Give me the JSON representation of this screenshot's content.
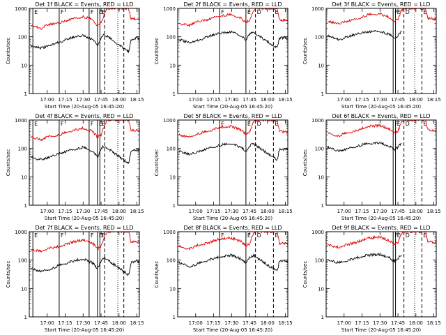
{
  "figure": {
    "ylabel": "Counts/sec",
    "xlabel_prefix": "Start Time (20-Aug-05",
    "colors": {
      "events": "#000000",
      "lld": "#e00000",
      "frame": "#000000"
    }
  },
  "chart_data": [
    {
      "type": "line",
      "title": "Det 1f BLACK = Events, RED = LLD",
      "xlabel": "Start Time (20-Aug-05 16:45:20)",
      "ylabel": "Counts/sec",
      "yscale": "log",
      "ylim": [
        1,
        1000
      ],
      "yticks": [
        "1",
        "10",
        "100",
        "1000"
      ],
      "xlim_minutes_after_1645": [
        0,
        92
      ],
      "xticks": [
        "17:00",
        "17:15",
        "17:30",
        "17:45",
        "18:00",
        "18:15"
      ],
      "annotations": [
        "E",
        "F",
        "F",
        "D",
        "E"
      ],
      "markers_solid": [
        "16:48",
        "17:10",
        "17:35",
        "17:42",
        "17:44"
      ],
      "markers_dashed": [
        "17:48",
        "18:04"
      ],
      "markers_dotted": [
        "17:59"
      ],
      "series": [
        {
          "color": "black",
          "x": [
            "16:46",
            "16:55",
            "17:00",
            "17:10",
            "17:20",
            "17:30",
            "17:38",
            "17:42",
            "17:45",
            "17:46",
            "17:48",
            "18:08",
            "18:10",
            "18:15",
            "18:18"
          ],
          "y": [
            50,
            40,
            45,
            65,
            90,
            110,
            80,
            50,
            95,
            110,
            120,
            30,
            80,
            90,
            85
          ]
        },
        {
          "color": "red",
          "x": [
            "16:46",
            "16:55",
            "17:00",
            "17:10",
            "17:20",
            "17:30",
            "17:38",
            "17:42",
            "17:45",
            "17:48",
            "17:50",
            "18:08",
            "18:10",
            "18:15",
            "18:18"
          ],
          "y": [
            250,
            200,
            260,
            300,
            420,
            520,
            400,
            250,
            300,
            700,
            1000,
            1000,
            450,
            420,
            400
          ]
        }
      ]
    },
    {
      "type": "line",
      "title": "Det 2f BLACK = Events, RED = LLD",
      "xlabel": "Start Time (20-Aug-05 16:45:20)",
      "ylabel": "Counts/sec",
      "yscale": "log",
      "ylim": [
        1,
        1000
      ],
      "yticks": [
        "1",
        "10",
        "100",
        "1000"
      ],
      "xlim_minutes_after_1645": [
        0,
        92
      ],
      "xticks": [
        "17:00",
        "17:15",
        "17:30",
        "17:45",
        "18:00",
        "18:15"
      ],
      "annotations": [
        "F",
        "E",
        "D",
        "E"
      ],
      "markers_solid": [
        "17:20",
        "17:42"
      ],
      "markers_dashed": [
        "17:50",
        "18:05"
      ],
      "markers_dotted": [],
      "series": [
        {
          "color": "black",
          "x": [
            "16:46",
            "16:55",
            "17:00",
            "17:10",
            "17:20",
            "17:30",
            "17:38",
            "17:42",
            "17:45",
            "17:46",
            "17:48",
            "18:08",
            "18:10",
            "18:15",
            "18:18"
          ],
          "y": [
            80,
            60,
            70,
            100,
            130,
            150,
            110,
            80,
            120,
            130,
            150,
            40,
            90,
            95,
            90
          ]
        },
        {
          "color": "red",
          "x": [
            "16:46",
            "16:55",
            "17:00",
            "17:10",
            "17:20",
            "17:30",
            "17:38",
            "17:42",
            "17:45",
            "17:48",
            "17:50",
            "18:08",
            "18:10",
            "18:15",
            "18:18"
          ],
          "y": [
            300,
            250,
            320,
            400,
            560,
            600,
            450,
            320,
            380,
            800,
            1000,
            1000,
            400,
            380,
            350
          ]
        }
      ]
    },
    {
      "type": "line",
      "title": "Det 3f BLACK = Events, RED = LLD",
      "xlabel": "Start Time (20-Aug-05 16:45:20)",
      "ylabel": "Counts/sec",
      "yscale": "log",
      "ylim": [
        1,
        1000
      ],
      "yticks": [
        "1",
        "10",
        "100",
        "1000"
      ],
      "xlim_minutes_after_1645": [
        0,
        92
      ],
      "xticks": [
        "17:00",
        "17:15",
        "17:30",
        "17:45",
        "18:00",
        "18:15"
      ],
      "annotations": [
        "F",
        "E",
        "D",
        "E"
      ],
      "markers_solid": [
        "17:41",
        "17:43"
      ],
      "markers_dashed": [
        "17:50",
        "18:05"
      ],
      "markers_dotted": [
        "17:59"
      ],
      "series": [
        {
          "color": "black",
          "x": [
            "16:46",
            "16:55",
            "17:00",
            "17:10",
            "17:20",
            "17:30",
            "17:38",
            "17:42",
            "17:45",
            "17:46",
            "17:48"
          ],
          "y": [
            110,
            80,
            90,
            120,
            150,
            160,
            120,
            90,
            110,
            130,
            150
          ]
        },
        {
          "color": "red",
          "x": [
            "16:46",
            "16:55",
            "17:00",
            "17:10",
            "17:20",
            "17:30",
            "17:38",
            "17:42",
            "17:45",
            "17:48",
            "17:50",
            "18:08",
            "18:10",
            "18:15",
            "18:18"
          ],
          "y": [
            350,
            280,
            330,
            420,
            600,
            650,
            480,
            350,
            420,
            850,
            1000,
            1000,
            450,
            420,
            400
          ]
        }
      ]
    },
    {
      "type": "line",
      "title": "Det 4f BLACK = Events, RED = LLD",
      "xlabel": "Start Time (20-Aug-05 16:45:20)",
      "ylabel": "Counts/sec",
      "yscale": "log",
      "ylim": [
        1,
        1000
      ],
      "yticks": [
        "1",
        "10",
        "100",
        "1000"
      ],
      "xlim_minutes_after_1645": [
        0,
        92
      ],
      "xticks": [
        "17:00",
        "17:15",
        "17:30",
        "17:45",
        "18:00",
        "18:15"
      ],
      "annotations": [
        "E",
        "F",
        "F",
        "D",
        "E"
      ],
      "markers_solid": [
        "16:48",
        "17:10",
        "17:35",
        "17:42",
        "17:44"
      ],
      "markers_dashed": [
        "17:48",
        "18:04"
      ],
      "markers_dotted": [
        "17:59"
      ],
      "series": [
        {
          "color": "black",
          "x": [
            "16:46",
            "16:55",
            "17:00",
            "17:10",
            "17:20",
            "17:30",
            "17:38",
            "17:42",
            "17:45",
            "17:46",
            "17:48",
            "18:08",
            "18:10",
            "18:15",
            "18:18"
          ],
          "y": [
            50,
            40,
            45,
            65,
            90,
            110,
            80,
            50,
            95,
            110,
            120,
            30,
            80,
            90,
            85
          ]
        },
        {
          "color": "red",
          "x": [
            "16:46",
            "16:55",
            "17:00",
            "17:10",
            "17:20",
            "17:30",
            "17:38",
            "17:42",
            "17:45",
            "17:48",
            "17:50",
            "18:08",
            "18:10",
            "18:15",
            "18:18"
          ],
          "y": [
            250,
            200,
            260,
            300,
            420,
            520,
            400,
            250,
            300,
            700,
            1000,
            1000,
            450,
            420,
            400
          ]
        }
      ]
    },
    {
      "type": "line",
      "title": "Det 5f BLACK = Events, RED = LLD",
      "xlabel": "Start Time (20-Aug-05 16:45:20)",
      "ylabel": "Counts/sec",
      "yscale": "log",
      "ylim": [
        1,
        1000
      ],
      "yticks": [
        "1",
        "10",
        "100",
        "1000"
      ],
      "xlim_minutes_after_1645": [
        0,
        92
      ],
      "xticks": [
        "17:00",
        "17:15",
        "17:30",
        "17:45",
        "18:00",
        "18:15"
      ],
      "annotations": [
        "F",
        "E",
        "D",
        "E"
      ],
      "markers_solid": [
        "17:20",
        "17:42"
      ],
      "markers_dashed": [
        "17:50",
        "18:05"
      ],
      "markers_dotted": [],
      "series": [
        {
          "color": "black",
          "x": [
            "16:46",
            "16:55",
            "17:00",
            "17:10",
            "17:20",
            "17:30",
            "17:38",
            "17:42",
            "17:45",
            "17:46",
            "17:48",
            "18:08",
            "18:10",
            "18:15",
            "18:18"
          ],
          "y": [
            80,
            60,
            70,
            100,
            130,
            150,
            110,
            80,
            120,
            130,
            150,
            40,
            90,
            95,
            90
          ]
        },
        {
          "color": "red",
          "x": [
            "16:46",
            "16:55",
            "17:00",
            "17:10",
            "17:20",
            "17:30",
            "17:38",
            "17:42",
            "17:45",
            "17:48",
            "17:50",
            "18:08",
            "18:10",
            "18:15",
            "18:18"
          ],
          "y": [
            300,
            250,
            320,
            400,
            560,
            600,
            450,
            320,
            380,
            800,
            1000,
            1000,
            400,
            380,
            350
          ]
        }
      ]
    },
    {
      "type": "line",
      "title": "Det 6f BLACK = Events, RED = LLD",
      "xlabel": "Start Time (20-Aug-05 16:45:20)",
      "ylabel": "Counts/sec",
      "yscale": "log",
      "ylim": [
        1,
        1000
      ],
      "yticks": [
        "1",
        "10",
        "100",
        "1000"
      ],
      "xlim_minutes_after_1645": [
        0,
        92
      ],
      "xticks": [
        "17:00",
        "17:15",
        "17:30",
        "17:45",
        "18:00",
        "18:15"
      ],
      "annotations": [
        "F",
        "E",
        "D",
        "E"
      ],
      "markers_solid": [
        "17:41",
        "17:43"
      ],
      "markers_dashed": [
        "17:50",
        "18:05"
      ],
      "markers_dotted": [
        "17:59"
      ],
      "series": [
        {
          "color": "black",
          "x": [
            "16:46",
            "16:55",
            "17:00",
            "17:10",
            "17:20",
            "17:30",
            "17:38",
            "17:42",
            "17:45",
            "17:46",
            "17:48"
          ],
          "y": [
            110,
            80,
            90,
            120,
            150,
            160,
            120,
            90,
            110,
            130,
            150
          ]
        },
        {
          "color": "red",
          "x": [
            "16:46",
            "16:55",
            "17:00",
            "17:10",
            "17:20",
            "17:30",
            "17:38",
            "17:42",
            "17:45",
            "17:48",
            "17:50",
            "18:08",
            "18:10",
            "18:15",
            "18:18"
          ],
          "y": [
            350,
            280,
            330,
            420,
            600,
            650,
            480,
            350,
            420,
            850,
            1000,
            1000,
            450,
            420,
            400
          ]
        }
      ]
    },
    {
      "type": "line",
      "title": "Det 7f BLACK = Events, RED = LLD",
      "xlabel": "Start Time (20-Aug-05 16:45:20)",
      "ylabel": "Counts/sec",
      "yscale": "log",
      "ylim": [
        1,
        1000
      ],
      "yticks": [
        "1",
        "10",
        "100",
        "1000"
      ],
      "xlim_minutes_after_1645": [
        0,
        92
      ],
      "xticks": [
        "17:00",
        "17:15",
        "17:30",
        "17:45",
        "18:00",
        "18:15"
      ],
      "annotations": [
        "E",
        "F",
        "F",
        "D",
        "E"
      ],
      "markers_solid": [
        "16:48",
        "17:10",
        "17:35",
        "17:42",
        "17:44"
      ],
      "markers_dashed": [
        "17:48",
        "18:04"
      ],
      "markers_dotted": [
        "17:59"
      ],
      "series": [
        {
          "color": "black",
          "x": [
            "16:46",
            "16:55",
            "17:00",
            "17:10",
            "17:20",
            "17:30",
            "17:38",
            "17:42",
            "17:45",
            "17:46",
            "17:48",
            "18:08",
            "18:10",
            "18:15",
            "18:18"
          ],
          "y": [
            50,
            40,
            45,
            65,
            90,
            110,
            80,
            50,
            95,
            110,
            120,
            30,
            80,
            90,
            85
          ]
        },
        {
          "color": "red",
          "x": [
            "16:46",
            "16:55",
            "17:00",
            "17:10",
            "17:20",
            "17:30",
            "17:38",
            "17:42",
            "17:45",
            "17:48",
            "17:50",
            "18:08",
            "18:10",
            "18:15",
            "18:18"
          ],
          "y": [
            250,
            200,
            260,
            300,
            420,
            520,
            400,
            250,
            300,
            700,
            1000,
            1000,
            450,
            420,
            400
          ]
        }
      ]
    },
    {
      "type": "line",
      "title": "Det 8f BLACK = Events, RED = LLD",
      "xlabel": "Start Time (20-Aug-05 16:45:20)",
      "ylabel": "Counts/sec",
      "yscale": "log",
      "ylim": [
        1,
        1000
      ],
      "yticks": [
        "1",
        "10",
        "100",
        "1000"
      ],
      "xlim_minutes_after_1645": [
        0,
        92
      ],
      "xticks": [
        "17:00",
        "17:15",
        "17:30",
        "17:45",
        "18:00",
        "18:15"
      ],
      "annotations": [
        "F",
        "E",
        "D",
        "E"
      ],
      "markers_solid": [
        "17:20",
        "17:42"
      ],
      "markers_dashed": [
        "17:50",
        "18:05"
      ],
      "markers_dotted": [],
      "series": [
        {
          "color": "black",
          "x": [
            "16:46",
            "16:55",
            "17:00",
            "17:10",
            "17:20",
            "17:30",
            "17:38",
            "17:42",
            "17:45",
            "17:46",
            "17:48",
            "18:08",
            "18:10",
            "18:15",
            "18:18"
          ],
          "y": [
            80,
            60,
            70,
            100,
            130,
            150,
            110,
            80,
            120,
            130,
            150,
            40,
            90,
            95,
            90
          ]
        },
        {
          "color": "red",
          "x": [
            "16:46",
            "16:55",
            "17:00",
            "17:10",
            "17:20",
            "17:30",
            "17:38",
            "17:42",
            "17:45",
            "17:48",
            "17:50",
            "18:08",
            "18:10",
            "18:15",
            "18:18"
          ],
          "y": [
            300,
            250,
            320,
            400,
            560,
            600,
            450,
            320,
            380,
            800,
            1000,
            1000,
            400,
            380,
            350
          ]
        }
      ]
    },
    {
      "type": "line",
      "title": "Det 9f BLACK = Events, RED = LLD",
      "xlabel": "Start Time (20-Aug-05 16:45:20)",
      "ylabel": "Counts/sec",
      "yscale": "log",
      "ylim": [
        1,
        1000
      ],
      "yticks": [
        "1",
        "10",
        "100",
        "1000"
      ],
      "xlim_minutes_after_1645": [
        0,
        92
      ],
      "xticks": [
        "17:00",
        "17:15",
        "17:30",
        "17:45",
        "18:00",
        "18:15"
      ],
      "annotations": [
        "F",
        "E",
        "D",
        "E"
      ],
      "markers_solid": [
        "17:41",
        "17:43"
      ],
      "markers_dashed": [
        "17:50",
        "18:05"
      ],
      "markers_dotted": [
        "17:59"
      ],
      "series": [
        {
          "color": "black",
          "x": [
            "16:46",
            "16:55",
            "17:00",
            "17:10",
            "17:20",
            "17:30",
            "17:38",
            "17:42",
            "17:45",
            "17:46",
            "17:48"
          ],
          "y": [
            110,
            80,
            90,
            120,
            150,
            160,
            120,
            90,
            110,
            130,
            150
          ]
        },
        {
          "color": "red",
          "x": [
            "16:46",
            "16:55",
            "17:00",
            "17:10",
            "17:20",
            "17:30",
            "17:38",
            "17:42",
            "17:45",
            "17:48",
            "17:50",
            "18:08",
            "18:10",
            "18:15",
            "18:18"
          ],
          "y": [
            350,
            280,
            330,
            420,
            600,
            650,
            480,
            350,
            420,
            850,
            1000,
            1000,
            450,
            420,
            400
          ]
        }
      ]
    }
  ]
}
